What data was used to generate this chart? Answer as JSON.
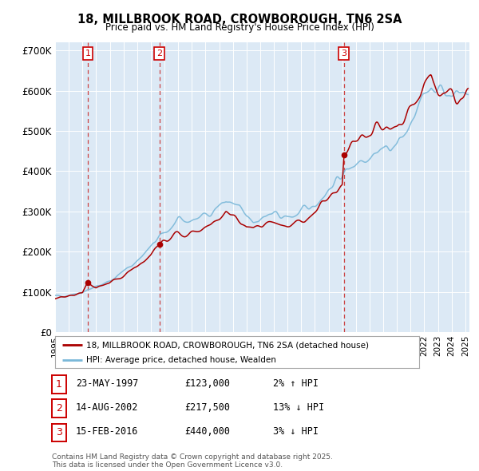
{
  "title": "18, MILLBROOK ROAD, CROWBOROUGH, TN6 2SA",
  "subtitle": "Price paid vs. HM Land Registry's House Price Index (HPI)",
  "background_color": "#ffffff",
  "plot_bg_color": "#dce9f5",
  "ylim": [
    0,
    720000
  ],
  "yticks": [
    0,
    100000,
    200000,
    300000,
    400000,
    500000,
    600000,
    700000
  ],
  "ytick_labels": [
    "£0",
    "£100K",
    "£200K",
    "£300K",
    "£400K",
    "£500K",
    "£600K",
    "£700K"
  ],
  "xlim_start": 1995.3,
  "xlim_end": 2025.3,
  "sale_dates": [
    1997.39,
    2002.62,
    2016.12
  ],
  "sale_prices": [
    123000,
    217500,
    440000
  ],
  "sale_labels": [
    "1",
    "2",
    "3"
  ],
  "hpi_line_color": "#7ab8d9",
  "price_line_color": "#aa0000",
  "dashed_line_color": "#cc4444",
  "legend_house_label": "18, MILLBROOK ROAD, CROWBOROUGH, TN6 2SA (detached house)",
  "legend_hpi_label": "HPI: Average price, detached house, Wealden",
  "table_entries": [
    {
      "label": "1",
      "date": "23-MAY-1997",
      "price": "£123,000",
      "hpi": "2% ↑ HPI"
    },
    {
      "label": "2",
      "date": "14-AUG-2002",
      "price": "£217,500",
      "hpi": "13% ↓ HPI"
    },
    {
      "label": "3",
      "date": "15-FEB-2016",
      "price": "£440,000",
      "hpi": "3% ↓ HPI"
    }
  ],
  "footer": "Contains HM Land Registry data © Crown copyright and database right 2025.\nThis data is licensed under the Open Government Licence v3.0.",
  "hpi_anchors": [
    [
      1995.0,
      88000
    ],
    [
      1996.0,
      93000
    ],
    [
      1997.0,
      100000
    ],
    [
      1998.0,
      112000
    ],
    [
      1999.0,
      128000
    ],
    [
      2000.0,
      150000
    ],
    [
      2001.0,
      178000
    ],
    [
      2002.0,
      210000
    ],
    [
      2003.0,
      248000
    ],
    [
      2004.0,
      272000
    ],
    [
      2005.0,
      278000
    ],
    [
      2006.0,
      292000
    ],
    [
      2007.5,
      325000
    ],
    [
      2008.5,
      305000
    ],
    [
      2009.0,
      285000
    ],
    [
      2009.5,
      275000
    ],
    [
      2010.0,
      285000
    ],
    [
      2011.0,
      290000
    ],
    [
      2012.0,
      285000
    ],
    [
      2013.0,
      295000
    ],
    [
      2014.0,
      320000
    ],
    [
      2015.0,
      355000
    ],
    [
      2016.0,
      390000
    ],
    [
      2017.0,
      425000
    ],
    [
      2018.0,
      445000
    ],
    [
      2019.0,
      455000
    ],
    [
      2020.0,
      465000
    ],
    [
      2021.0,
      510000
    ],
    [
      2022.0,
      580000
    ],
    [
      2022.5,
      625000
    ],
    [
      2023.0,
      605000
    ],
    [
      2023.5,
      595000
    ],
    [
      2024.0,
      600000
    ],
    [
      2024.5,
      595000
    ],
    [
      2025.0,
      590000
    ]
  ],
  "price_anchors": [
    [
      1995.0,
      83000
    ],
    [
      1996.0,
      89000
    ],
    [
      1997.0,
      96000
    ],
    [
      1997.39,
      123000
    ],
    [
      1998.0,
      110000
    ],
    [
      1999.0,
      122000
    ],
    [
      2000.0,
      140000
    ],
    [
      2001.0,
      165000
    ],
    [
      2002.0,
      195000
    ],
    [
      2002.62,
      217500
    ],
    [
      2003.0,
      225000
    ],
    [
      2004.0,
      245000
    ],
    [
      2005.0,
      248000
    ],
    [
      2006.0,
      258000
    ],
    [
      2007.0,
      278000
    ],
    [
      2007.5,
      295000
    ],
    [
      2008.5,
      278000
    ],
    [
      2009.0,
      262000
    ],
    [
      2009.5,
      255000
    ],
    [
      2010.0,
      262000
    ],
    [
      2011.0,
      268000
    ],
    [
      2012.0,
      262000
    ],
    [
      2013.0,
      272000
    ],
    [
      2014.0,
      295000
    ],
    [
      2015.0,
      330000
    ],
    [
      2016.0,
      365000
    ],
    [
      2016.12,
      440000
    ],
    [
      2016.5,
      455000
    ],
    [
      2017.0,
      475000
    ],
    [
      2018.0,
      495000
    ],
    [
      2019.0,
      505000
    ],
    [
      2020.0,
      515000
    ],
    [
      2021.0,
      558000
    ],
    [
      2022.0,
      620000
    ],
    [
      2022.5,
      645000
    ],
    [
      2023.0,
      610000
    ],
    [
      2023.5,
      598000
    ],
    [
      2024.0,
      600000
    ],
    [
      2024.5,
      592000
    ],
    [
      2025.0,
      585000
    ]
  ]
}
